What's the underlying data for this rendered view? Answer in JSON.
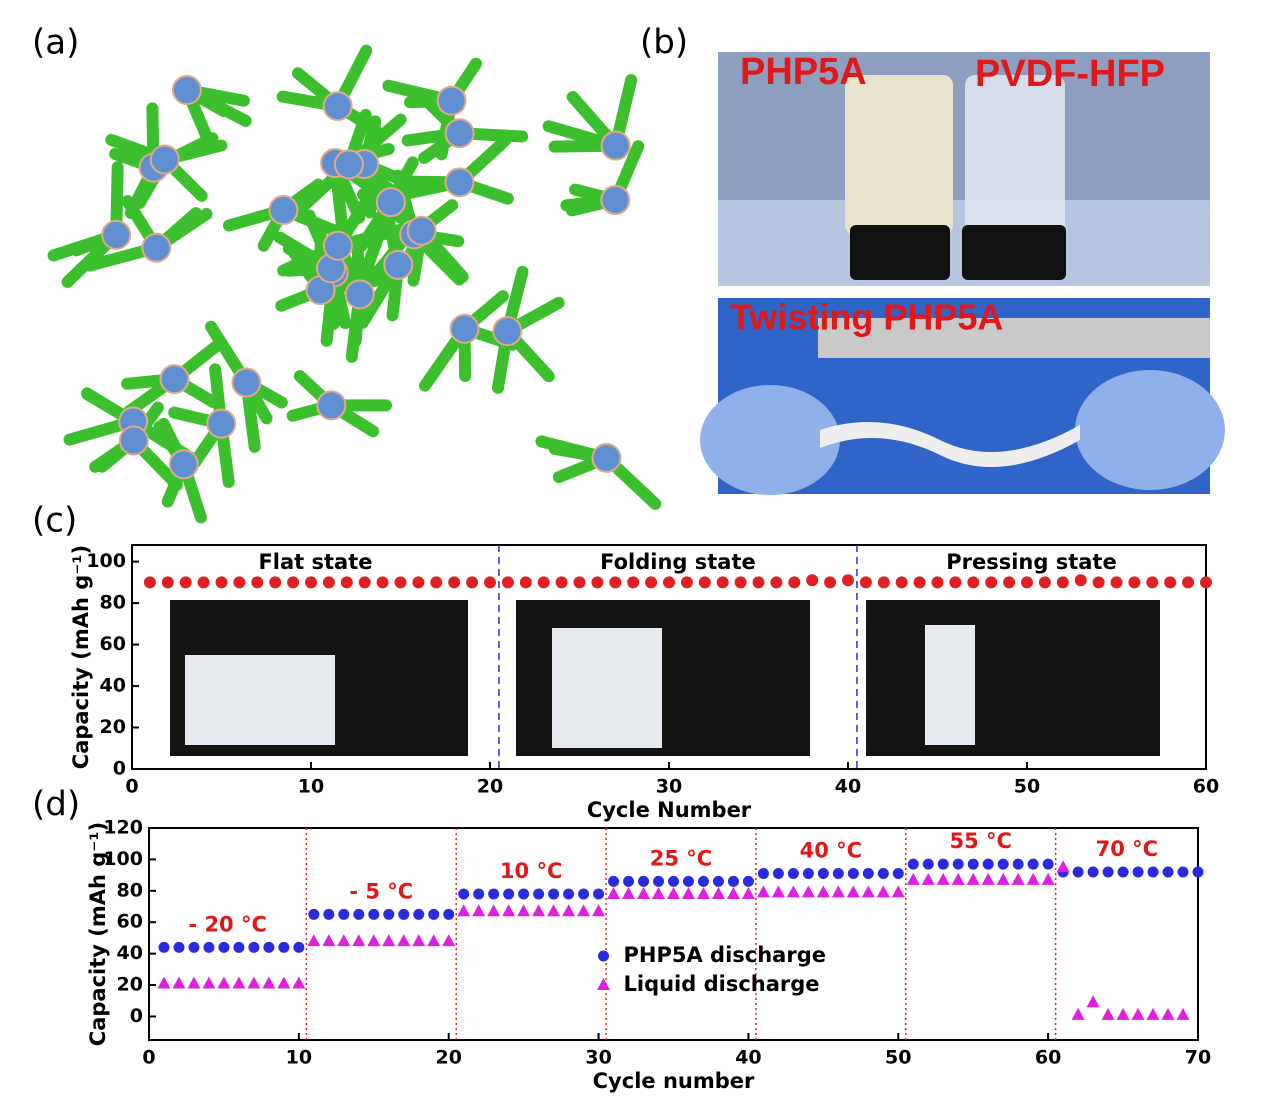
{
  "panel_labels": [
    "(a)",
    "(b)",
    "(c)",
    "(d)"
  ],
  "photos": {
    "vial_labels": [
      "PHP5A",
      "PVDF-HFP"
    ],
    "twist_label": "Twisting PHP5A"
  },
  "chart_data": [
    {
      "type": "scatter",
      "xlabel": "Cycle Number",
      "ylabel": "Capacity (mAh g⁻¹)",
      "xlim": [
        0,
        60
      ],
      "ylim": [
        0,
        108
      ],
      "xticks": [
        0,
        10,
        20,
        30,
        40,
        50,
        60
      ],
      "yticks": [
        0,
        20,
        40,
        60,
        80,
        100
      ],
      "annotations": [
        "Flat state",
        "Folding state",
        "Pressing state"
      ],
      "dividers": [
        20.5,
        40.5
      ],
      "x": [
        1,
        2,
        3,
        4,
        5,
        6,
        7,
        8,
        9,
        10,
        11,
        12,
        13,
        14,
        15,
        16,
        17,
        18,
        19,
        20,
        21,
        22,
        23,
        24,
        25,
        26,
        27,
        28,
        29,
        30,
        31,
        32,
        33,
        34,
        35,
        36,
        37,
        38,
        39,
        40,
        41,
        42,
        43,
        44,
        45,
        46,
        47,
        48,
        49,
        50,
        51,
        52,
        53,
        54,
        55,
        56,
        57,
        58,
        59,
        60
      ],
      "series": [
        {
          "marker": "circle",
          "color": "#e02020",
          "values": [
            90,
            90,
            90,
            90,
            90,
            90,
            90,
            90,
            90,
            90,
            90,
            90,
            90,
            90,
            90,
            90,
            90,
            90,
            90,
            90,
            90,
            90,
            90,
            90,
            90,
            90,
            90,
            90,
            90,
            90,
            90,
            90,
            90,
            90,
            90,
            90,
            90,
            91,
            90,
            91,
            90,
            90,
            90,
            90,
            90,
            90,
            90,
            90,
            90,
            90,
            90,
            90,
            91,
            90,
            90,
            90,
            90,
            90,
            90,
            90
          ]
        }
      ]
    },
    {
      "type": "scatter",
      "xlabel": "Cycle number",
      "ylabel": "Capacity (mAh g⁻¹)",
      "xlim": [
        0,
        70
      ],
      "ylim": [
        -15,
        120
      ],
      "xticks": [
        0,
        10,
        20,
        30,
        40,
        50,
        60,
        70
      ],
      "yticks": [
        0,
        20,
        40,
        60,
        80,
        100,
        120
      ],
      "annotations": [
        "- 20 °C",
        "- 5 °C",
        "10 °C",
        "25 °C",
        "40 °C",
        "55 °C",
        "70 °C"
      ],
      "dividers": [
        10.5,
        20.5,
        30.5,
        40.5,
        50.5,
        60.5
      ],
      "legend": "center",
      "x": [
        1,
        2,
        3,
        4,
        5,
        6,
        7,
        8,
        9,
        10,
        11,
        12,
        13,
        14,
        15,
        16,
        17,
        18,
        19,
        20,
        21,
        22,
        23,
        24,
        25,
        26,
        27,
        28,
        29,
        30,
        31,
        32,
        33,
        34,
        35,
        36,
        37,
        38,
        39,
        40,
        41,
        42,
        43,
        44,
        45,
        46,
        47,
        48,
        49,
        50,
        51,
        52,
        53,
        54,
        55,
        56,
        57,
        58,
        59,
        60,
        61,
        62,
        63,
        64,
        65,
        66,
        67,
        68,
        69,
        70
      ],
      "series": [
        {
          "name": "PHP5A discharge",
          "marker": "circle",
          "color": "#2a2ae0",
          "values": [
            44,
            44,
            44,
            44,
            44,
            44,
            44,
            44,
            44,
            44,
            65,
            65,
            65,
            65,
            65,
            65,
            65,
            65,
            65,
            65,
            78,
            78,
            78,
            78,
            78,
            78,
            78,
            78,
            78,
            78,
            86,
            86,
            86,
            86,
            86,
            86,
            86,
            86,
            86,
            86,
            91,
            91,
            91,
            91,
            91,
            91,
            91,
            91,
            91,
            91,
            97,
            97,
            97,
            97,
            97,
            97,
            97,
            97,
            97,
            97,
            92,
            92,
            92,
            92,
            92,
            92,
            92,
            92,
            92,
            92
          ]
        },
        {
          "name": "Liquid discharge",
          "marker": "triangle",
          "color": "#e020e0",
          "values": [
            21,
            21,
            21,
            21,
            21,
            21,
            21,
            21,
            21,
            21,
            48,
            48,
            48,
            48,
            48,
            48,
            48,
            48,
            48,
            48,
            67,
            67,
            67,
            67,
            67,
            67,
            67,
            67,
            67,
            67,
            78,
            78,
            78,
            78,
            78,
            78,
            78,
            78,
            78,
            78,
            79,
            79,
            79,
            79,
            79,
            79,
            79,
            79,
            79,
            79,
            87,
            87,
            87,
            87,
            87,
            87,
            87,
            87,
            87,
            87,
            95,
            1,
            9,
            1,
            1,
            1,
            1,
            1,
            1,
            null
          ]
        }
      ]
    }
  ]
}
